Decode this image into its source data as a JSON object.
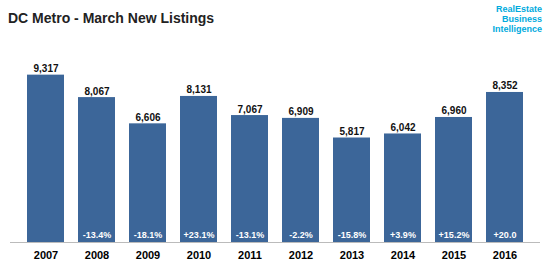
{
  "chart_data": {
    "type": "bar",
    "title": "DC Metro - March New Listings",
    "categories": [
      "2007",
      "2008",
      "2009",
      "2010",
      "2011",
      "2012",
      "2013",
      "2014",
      "2015",
      "2016"
    ],
    "values": [
      9317,
      8067,
      6606,
      8131,
      7067,
      6909,
      5817,
      6042,
      6960,
      8352
    ],
    "value_labels": [
      "9,317",
      "8,067",
      "6,606",
      "8,131",
      "7,067",
      "6,909",
      "5,817",
      "6,042",
      "6,960",
      "8,352"
    ],
    "change_labels": [
      null,
      "-13.4%",
      "-18.1%",
      "+23.1%",
      "-13.1%",
      "-2.2%",
      "-15.8%",
      "+3.9%",
      "+15.2%",
      "+20.0"
    ],
    "annotations": [
      {
        "text": "RealEstate",
        "color": "#00aadd"
      },
      {
        "text": "Business",
        "color": "#00aadd"
      },
      {
        "text": "Intelligence",
        "color": "#00aadd"
      }
    ],
    "color": "#3c6699",
    "ylim": [
      0,
      10800
    ],
    "data_labels": true,
    "tick_labels": "x",
    "grid": false
  }
}
